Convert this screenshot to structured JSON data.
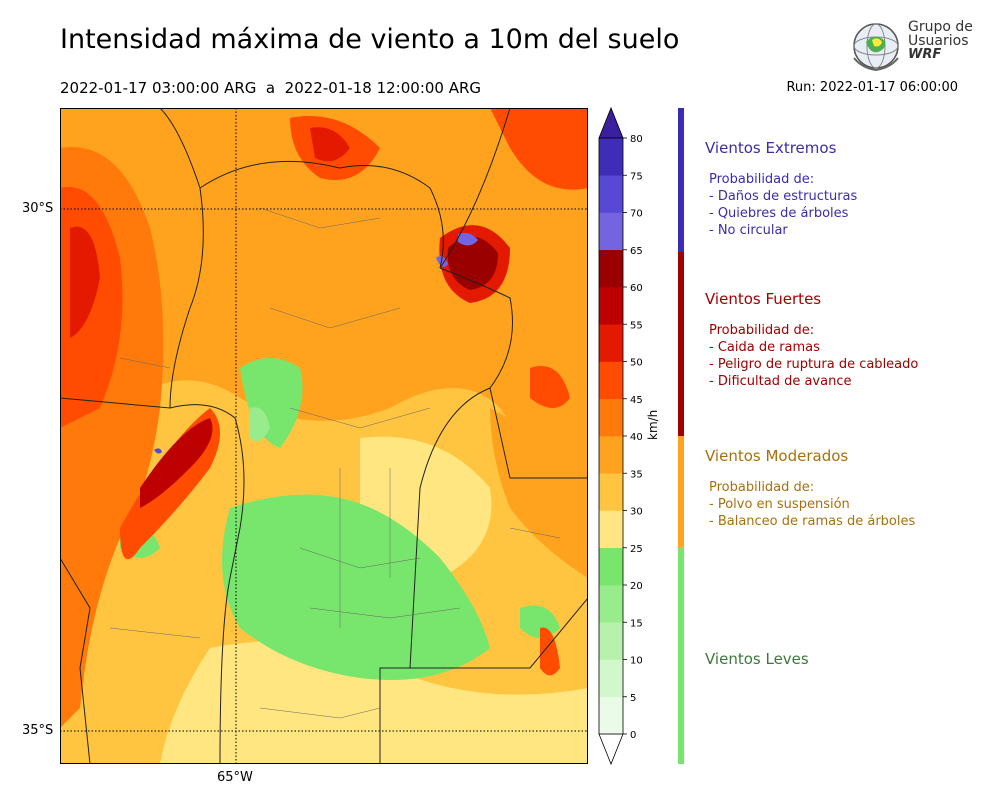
{
  "header": {
    "title": "Intensidad máxima de viento a 10m del suelo",
    "period": "2022-01-17 03:00:00 ARG  a  2022-01-18 12:00:00 ARG",
    "run": "Run: 2022-01-17 06:00:00"
  },
  "logo": {
    "line1": "Grupo de",
    "line2": "Usuarios",
    "line3": "WRF"
  },
  "map": {
    "lat_labels": [
      "30°S",
      "35°S"
    ],
    "lon_labels": [
      "65°W"
    ]
  },
  "colorbar": {
    "unit": "km/h",
    "ticks": [
      "0",
      "5",
      "10",
      "15",
      "20",
      "25",
      "30",
      "35",
      "40",
      "45",
      "50",
      "55",
      "60",
      "65",
      "70",
      "75",
      "80"
    ],
    "colors": [
      "#eafbe7",
      "#d3f7cd",
      "#b7f2ad",
      "#98ec8c",
      "#78e56c",
      "#ffe680",
      "#ffc540",
      "#ffa31f",
      "#ff7a0a",
      "#ff4c00",
      "#e31a00",
      "#bd0000",
      "#9a0000",
      "#7464e0",
      "#5848d6",
      "#3f2db8"
    ],
    "top_color": "#3a1f9e",
    "bottom_color": "#ffffff"
  },
  "categories": [
    {
      "name": "Vientos Extremos",
      "color": "#3a2daa",
      "strip": "#3a2db4",
      "lines": [
        "Probabilidad de:",
        "- Daños de estructuras",
        "- Quiebres de árboles",
        "- No circular"
      ]
    },
    {
      "name": "Vientos Fuertes",
      "color": "#a00000",
      "strip": "#a00000",
      "lines": [
        "Probabilidad de:",
        "- Caida de ramas",
        "- Peligro de ruptura de cableado",
        "- Dificultad de avance"
      ]
    },
    {
      "name": "Vientos Moderados",
      "color": "#a8700a",
      "strip": "#ffa31f",
      "lines": [
        "Probabilidad de:",
        "- Polvo en suspensión",
        "- Balanceo de ramas de árboles"
      ]
    },
    {
      "name": "Vientos Leves",
      "color": "#3a7a3a",
      "strip": "#78e56c",
      "lines": []
    }
  ]
}
